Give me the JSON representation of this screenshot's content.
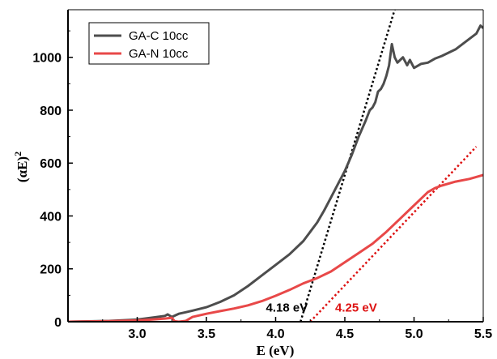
{
  "chart_data": {
    "type": "line",
    "title": "",
    "xlabel": "E (eV)",
    "ylabel": "(αE)",
    "ylabel_superscript": "2",
    "xlim": [
      2.5,
      5.5
    ],
    "ylim": [
      0,
      1180
    ],
    "xticks": [
      3.0,
      3.5,
      4.0,
      4.5,
      5.0,
      5.5
    ],
    "xtick_labels": [
      "3.0",
      "3.5",
      "4.0",
      "4.5",
      "5.0",
      "5.5"
    ],
    "yticks": [
      0,
      200,
      400,
      600,
      800,
      1000
    ],
    "ytick_labels": [
      "0",
      "200",
      "400",
      "600",
      "800",
      "1000"
    ],
    "grid": false,
    "legend_position": "top-left",
    "series": [
      {
        "name": "GA-C 10cc",
        "color": "#4d4d4d",
        "x": [
          2.5,
          2.8,
          3.0,
          3.1,
          3.2,
          3.22,
          3.25,
          3.3,
          3.35,
          3.4,
          3.5,
          3.6,
          3.7,
          3.8,
          3.9,
          4.0,
          4.1,
          4.2,
          4.3,
          4.35,
          4.4,
          4.45,
          4.5,
          4.55,
          4.6,
          4.65,
          4.68,
          4.7,
          4.72,
          4.74,
          4.76,
          4.78,
          4.8,
          4.82,
          4.84,
          4.86,
          4.88,
          4.9,
          4.92,
          4.95,
          4.97,
          5.0,
          5.05,
          5.1,
          5.15,
          5.2,
          5.3,
          5.4,
          5.45,
          5.48,
          5.5
        ],
        "y": [
          0,
          3,
          8,
          15,
          22,
          28,
          18,
          30,
          36,
          42,
          55,
          75,
          100,
          135,
          175,
          215,
          255,
          305,
          375,
          420,
          470,
          520,
          570,
          630,
          700,
          760,
          800,
          810,
          830,
          870,
          880,
          900,
          930,
          970,
          1050,
          1000,
          980,
          990,
          1000,
          970,
          990,
          960,
          975,
          980,
          995,
          1005,
          1030,
          1070,
          1090,
          1120,
          1110
        ]
      },
      {
        "name": "GA-N 10cc",
        "color": "#e84848",
        "x": [
          2.5,
          2.8,
          3.0,
          3.1,
          3.2,
          3.25,
          3.27,
          3.3,
          3.35,
          3.4,
          3.5,
          3.6,
          3.7,
          3.8,
          3.9,
          4.0,
          4.1,
          4.2,
          4.3,
          4.4,
          4.5,
          4.6,
          4.7,
          4.8,
          4.9,
          5.0,
          5.05,
          5.1,
          5.15,
          5.2,
          5.3,
          5.4,
          5.5
        ],
        "y": [
          0,
          2,
          5,
          8,
          12,
          15,
          2,
          0,
          3,
          18,
          30,
          40,
          50,
          62,
          78,
          98,
          120,
          145,
          165,
          190,
          225,
          260,
          295,
          340,
          390,
          440,
          465,
          490,
          505,
          515,
          530,
          540,
          555
        ]
      }
    ],
    "fit_lines": [
      {
        "color": "#000000",
        "x": [
          4.18,
          4.86
        ],
        "y": [
          0,
          1180
        ]
      },
      {
        "color": "#dd1111",
        "x": [
          4.25,
          5.45
        ],
        "y": [
          0,
          662
        ]
      }
    ],
    "annotations": [
      {
        "text": "4.18 eV",
        "color": "#000000",
        "x": 3.93,
        "y": 38
      },
      {
        "text": "4.25 eV",
        "color": "#dd1111",
        "x": 4.43,
        "y": 38
      }
    ]
  }
}
